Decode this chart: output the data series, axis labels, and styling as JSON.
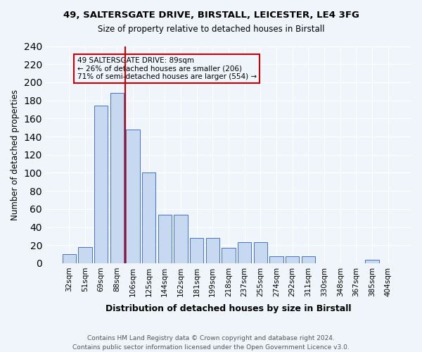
{
  "title1": "49, SALTERSGATE DRIVE, BIRSTALL, LEICESTER, LE4 3FG",
  "title2": "Size of property relative to detached houses in Birstall",
  "xlabel": "Distribution of detached houses by size in Birstall",
  "ylabel": "Number of detached properties",
  "footnote1": "Contains HM Land Registry data © Crown copyright and database right 2024.",
  "footnote2": "Contains public sector information licensed under the Open Government Licence v3.0.",
  "annotation_line1": "49 SALTERSGATE DRIVE: 89sqm",
  "annotation_line2": "← 26% of detached houses are smaller (206)",
  "annotation_line3": "71% of semi-detached houses are larger (554) →",
  "bar_labels": [
    "32sqm",
    "51sqm",
    "69sqm",
    "88sqm",
    "106sqm",
    "125sqm",
    "144sqm",
    "162sqm",
    "181sqm",
    "199sqm",
    "218sqm",
    "237sqm",
    "255sqm",
    "274sqm",
    "292sqm",
    "311sqm",
    "330sqm",
    "348sqm",
    "367sqm",
    "385sqm",
    "404sqm"
  ],
  "bar_heights": [
    10,
    18,
    174,
    188,
    148,
    100,
    54,
    54,
    28,
    28,
    17,
    23,
    23,
    8,
    8,
    8,
    0,
    0,
    0,
    4,
    0
  ],
  "bar_color": "#c6d9f0",
  "bar_edge_color": "#4472c4",
  "marker_index": 3,
  "marker_color": "#cc0000",
  "ylim": [
    0,
    240
  ],
  "yticks": [
    0,
    20,
    40,
    60,
    80,
    100,
    120,
    140,
    160,
    180,
    200,
    220,
    240
  ],
  "bg_color": "#f0f4fb",
  "grid_color": "#ffffff",
  "annotation_box_color": "#cc0000"
}
